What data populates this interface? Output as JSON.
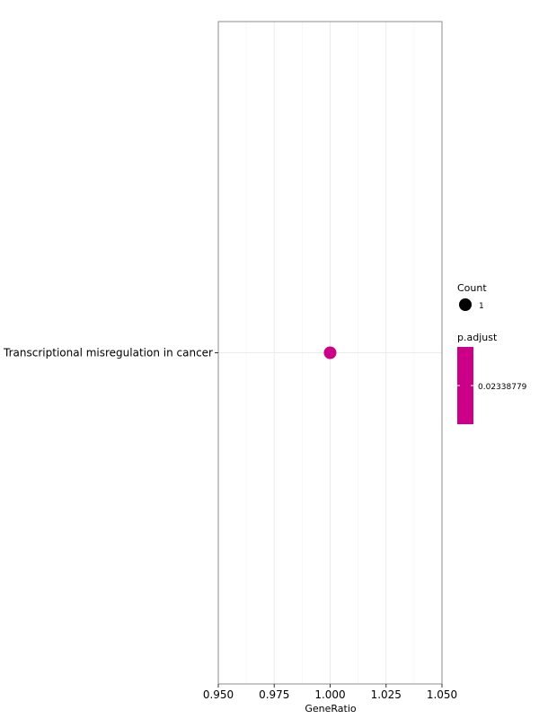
{
  "chart_data": {
    "type": "scatter",
    "xlabel": "GeneRatio",
    "ylabel": "",
    "xlim": [
      0.95,
      1.05
    ],
    "x_ticks": [
      "0.950",
      "0.975",
      "1.000",
      "1.025",
      "1.050"
    ],
    "x_tick_values": [
      0.95,
      0.975,
      1.0,
      1.025,
      1.05
    ],
    "categories": [
      "Transcriptional misregulation in cancer"
    ],
    "points": [
      {
        "category": "Transcriptional misregulation in cancer",
        "x": 1.0,
        "count": 1,
        "p_adjust": 0.02338779,
        "color": "#CC0088"
      }
    ],
    "grid": true,
    "legend_position": "right",
    "legend": {
      "size": {
        "title": "Count",
        "entries": [
          {
            "label": "1",
            "value": 1
          }
        ]
      },
      "color": {
        "title": "p.adjust",
        "entries": [
          {
            "label": "0.02338779",
            "value": 0.02338779
          }
        ],
        "color": "#CC0088"
      }
    }
  }
}
